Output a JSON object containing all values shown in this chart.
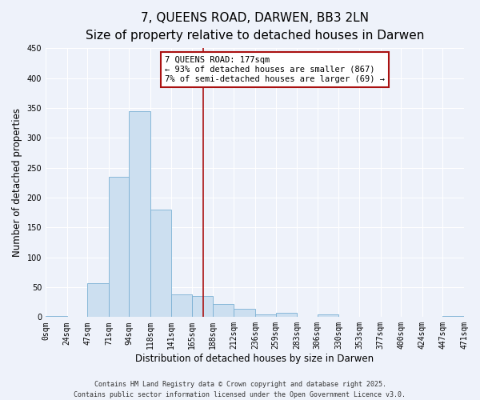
{
  "title": "7, QUEENS ROAD, DARWEN, BB3 2LN",
  "subtitle": "Size of property relative to detached houses in Darwen",
  "xlabel": "Distribution of detached houses by size in Darwen",
  "ylabel": "Number of detached properties",
  "bar_color": "#ccdff0",
  "bar_edge_color": "#7ab0d4",
  "background_color": "#eef2fa",
  "grid_color": "#ffffff",
  "vline_x": 177,
  "vline_color": "#aa1111",
  "bin_edges": [
    0,
    24,
    47,
    71,
    94,
    118,
    141,
    165,
    188,
    212,
    236,
    259,
    283,
    306,
    330,
    353,
    377,
    400,
    424,
    447,
    471
  ],
  "bar_heights": [
    2,
    0,
    57,
    235,
    345,
    180,
    38,
    35,
    22,
    14,
    5,
    7,
    0,
    5,
    0,
    0,
    0,
    0,
    0,
    2
  ],
  "ylim": [
    0,
    450
  ],
  "yticks": [
    0,
    50,
    100,
    150,
    200,
    250,
    300,
    350,
    400,
    450
  ],
  "annotation_title": "7 QUEENS ROAD: 177sqm",
  "annotation_line1": "← 93% of detached houses are smaller (867)",
  "annotation_line2": "7% of semi-detached houses are larger (69) →",
  "footer_line1": "Contains HM Land Registry data © Crown copyright and database right 2025.",
  "footer_line2": "Contains public sector information licensed under the Open Government Licence v3.0.",
  "title_fontsize": 11,
  "subtitle_fontsize": 9,
  "axis_label_fontsize": 8.5,
  "tick_fontsize": 7,
  "annotation_fontsize": 7.5,
  "footer_fontsize": 6
}
